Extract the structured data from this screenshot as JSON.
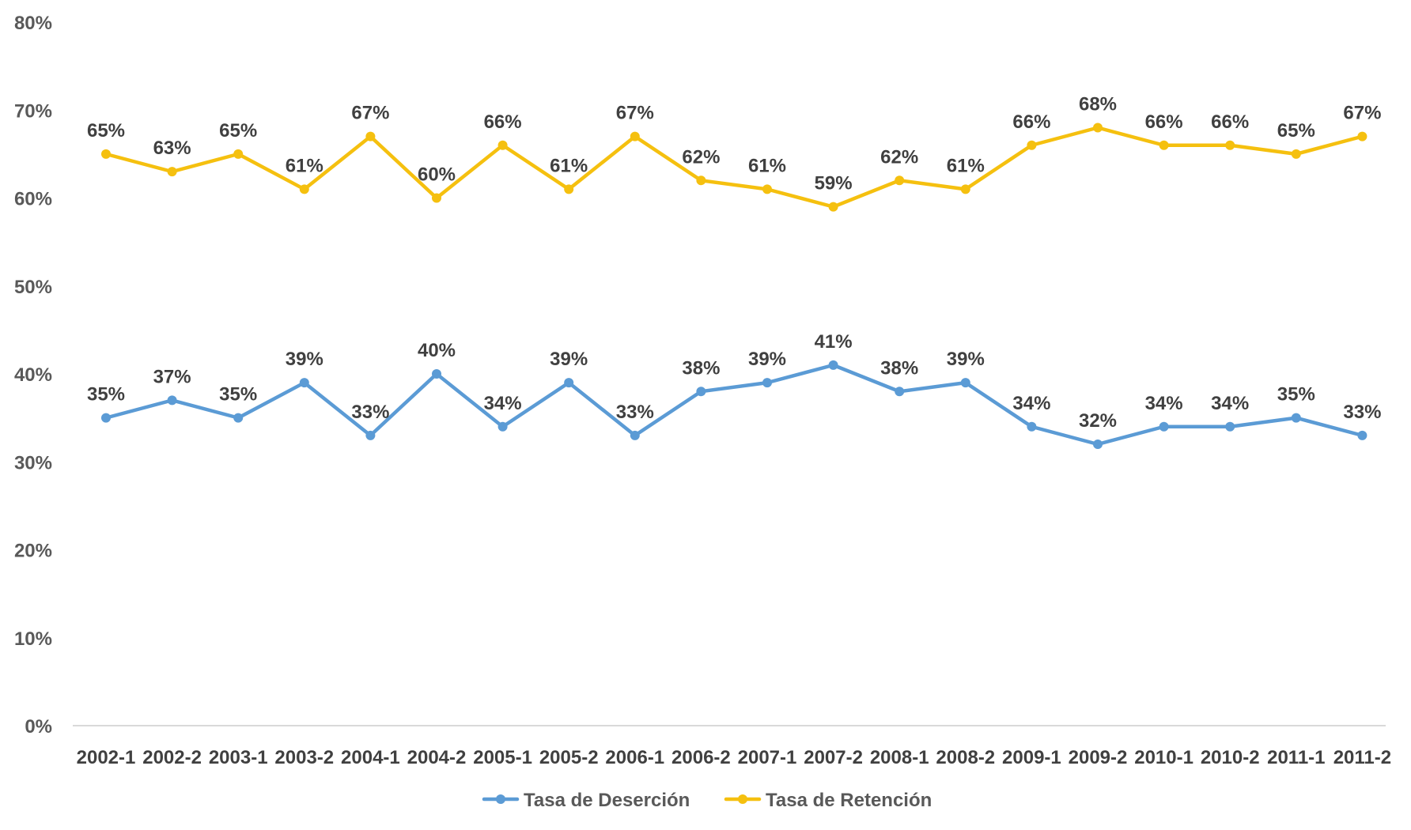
{
  "chart_data": {
    "type": "line",
    "categories": [
      "2002-1",
      "2002-2",
      "2003-1",
      "2003-2",
      "2004-1",
      "2004-2",
      "2005-1",
      "2005-2",
      "2006-1",
      "2006-2",
      "2007-1",
      "2007-2",
      "2008-1",
      "2008-2",
      "2009-1",
      "2009-2",
      "2010-1",
      "2010-2",
      "2011-1",
      "2011-2"
    ],
    "ylim": [
      0,
      80
    ],
    "yticks": [
      "0%",
      "10%",
      "20%",
      "30%",
      "40%",
      "50%",
      "60%",
      "70%",
      "80%"
    ],
    "grid": false,
    "legend_position": "bottom",
    "title": "",
    "xlabel": "",
    "ylabel": "",
    "series": [
      {
        "name": "Tasa de Deserción",
        "color": "#5b9bd5",
        "values": [
          35,
          37,
          35,
          39,
          33,
          40,
          34,
          39,
          33,
          38,
          39,
          41,
          38,
          39,
          34,
          32,
          34,
          34,
          35,
          33
        ],
        "labels": [
          "35%",
          "37%",
          "35%",
          "39%",
          "33%",
          "40%",
          "34%",
          "39%",
          "33%",
          "38%",
          "39%",
          "41%",
          "38%",
          "39%",
          "34%",
          "32%",
          "34%",
          "34%",
          "35%",
          "33%"
        ]
      },
      {
        "name": "Tasa de Retención",
        "color": "#f5c00f",
        "values": [
          65,
          63,
          65,
          61,
          67,
          60,
          66,
          61,
          67,
          62,
          61,
          59,
          62,
          61,
          66,
          68,
          66,
          66,
          65,
          67
        ],
        "labels": [
          "65%",
          "63%",
          "65%",
          "61%",
          "67%",
          "60%",
          "66%",
          "61%",
          "67%",
          "62%",
          "61%",
          "59%",
          "62%",
          "61%",
          "66%",
          "68%",
          "66%",
          "66%",
          "65%",
          "67%"
        ]
      }
    ]
  }
}
